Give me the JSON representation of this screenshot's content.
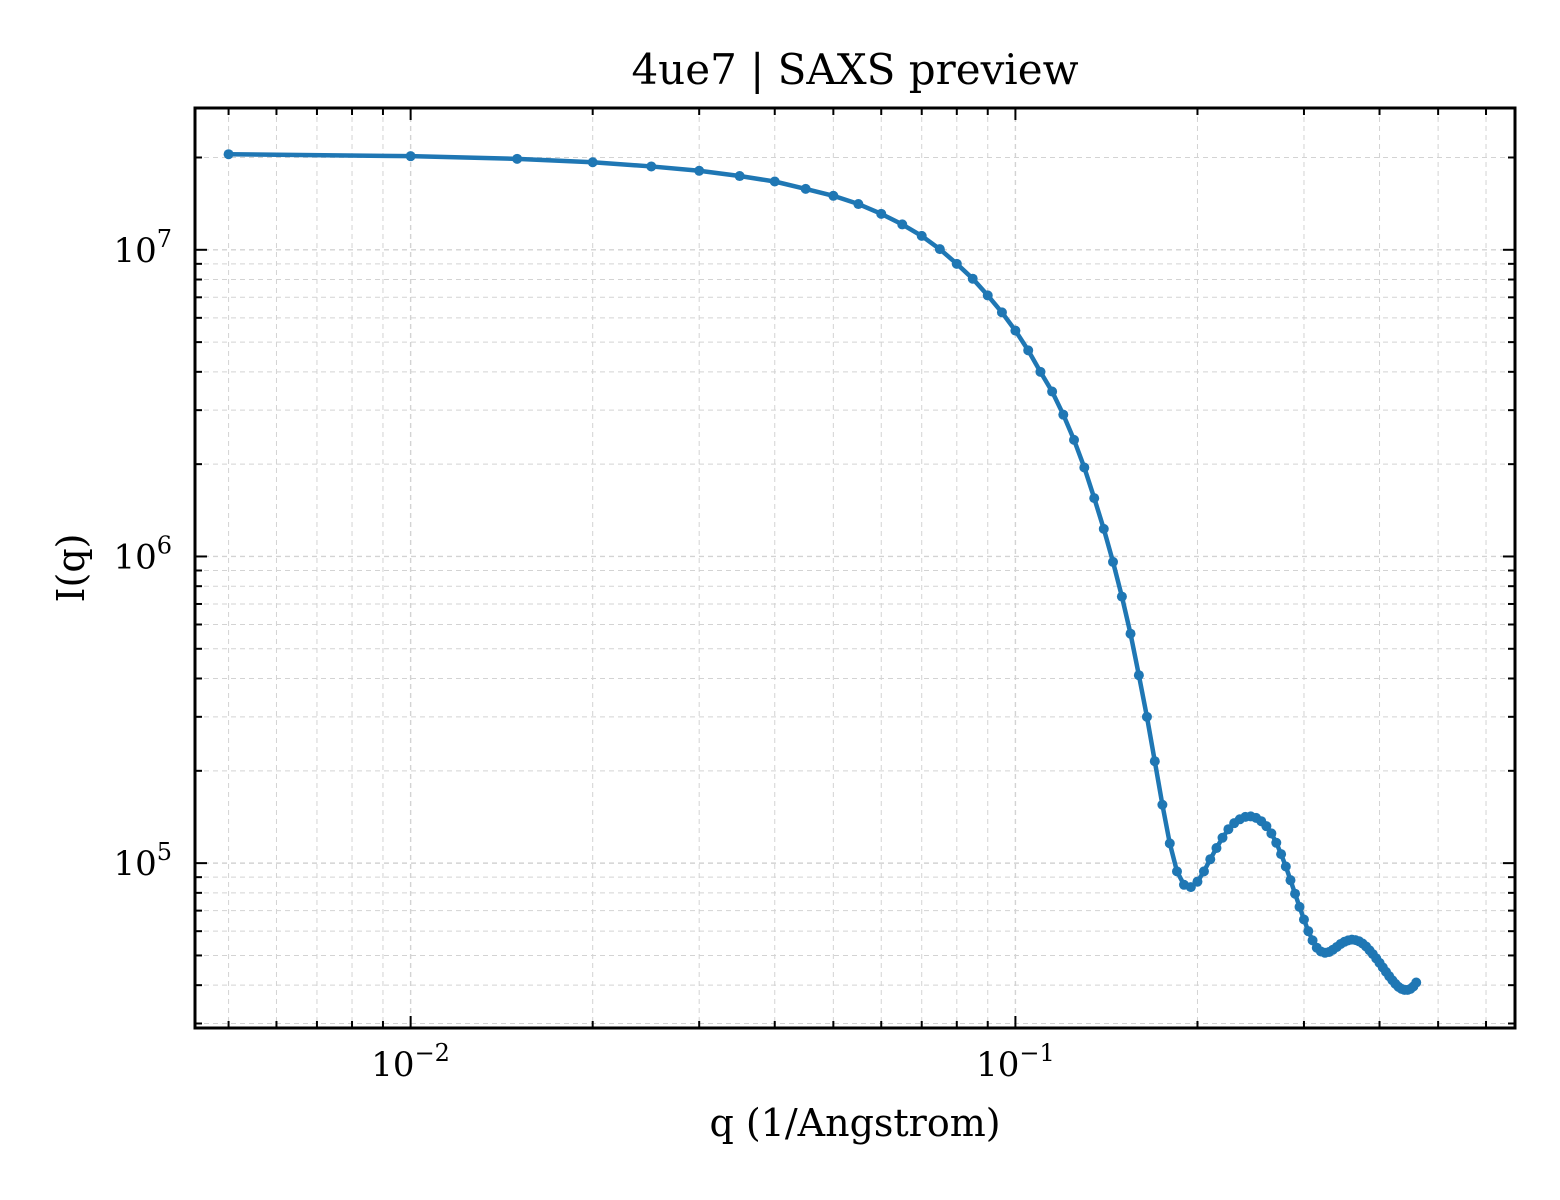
{
  "chart_data": {
    "type": "line",
    "title": "4ue7 | SAXS preview",
    "xlabel": "q (1/Angstrom)",
    "ylabel": "I(q)",
    "xscale": "log",
    "yscale": "log",
    "xlim": [
      0.0044,
      0.67
    ],
    "ylim": [
      29000,
      29000000
    ],
    "grid": true,
    "legend": "none",
    "colors": {
      "line": "#1f77b4",
      "grid": "#d3d3d3",
      "axis": "#000000"
    },
    "x_ticks": [
      {
        "value": 0.01,
        "base": "10",
        "exp": "−2"
      },
      {
        "value": 0.1,
        "base": "10",
        "exp": "−1"
      }
    ],
    "y_ticks": [
      {
        "value": 100000,
        "base": "10",
        "exp": "5"
      },
      {
        "value": 1000000,
        "base": "10",
        "exp": "6"
      },
      {
        "value": 10000000,
        "base": "10",
        "exp": "7"
      }
    ],
    "series": [
      {
        "points": [
          [
            0.005,
            20500000
          ],
          [
            0.01,
            20200000
          ],
          [
            0.015,
            19800000
          ],
          [
            0.02,
            19300000
          ],
          [
            0.025,
            18700000
          ],
          [
            0.03,
            18100000
          ],
          [
            0.035,
            17400000
          ],
          [
            0.04,
            16700000
          ],
          [
            0.045,
            15800000
          ],
          [
            0.05,
            15000000
          ],
          [
            0.055,
            14100000
          ],
          [
            0.06,
            13100000
          ],
          [
            0.065,
            12100000
          ],
          [
            0.07,
            11100000
          ],
          [
            0.075,
            10050000
          ],
          [
            0.08,
            9000000
          ],
          [
            0.085,
            8050000
          ],
          [
            0.09,
            7100000
          ],
          [
            0.095,
            6250000
          ],
          [
            0.1,
            5450000
          ],
          [
            0.105,
            4700000
          ],
          [
            0.11,
            4000000
          ],
          [
            0.115,
            3450000
          ],
          [
            0.12,
            2900000
          ],
          [
            0.125,
            2400000
          ],
          [
            0.13,
            1950000
          ],
          [
            0.135,
            1550000
          ],
          [
            0.14,
            1230000
          ],
          [
            0.145,
            960000
          ],
          [
            0.15,
            740000
          ],
          [
            0.155,
            560000
          ],
          [
            0.16,
            410000
          ],
          [
            0.165,
            300000
          ],
          [
            0.17,
            215000
          ],
          [
            0.175,
            155000
          ],
          [
            0.18,
            116000
          ],
          [
            0.185,
            94000
          ],
          [
            0.19,
            85000
          ],
          [
            0.195,
            83500
          ],
          [
            0.2,
            87000
          ],
          [
            0.205,
            94000
          ],
          [
            0.21,
            103000
          ],
          [
            0.215,
            112000
          ],
          [
            0.22,
            121000
          ],
          [
            0.225,
            129000
          ],
          [
            0.23,
            135000
          ],
          [
            0.235,
            139000
          ],
          [
            0.24,
            141500
          ],
          [
            0.245,
            142000
          ],
          [
            0.25,
            140500
          ],
          [
            0.255,
            137000
          ],
          [
            0.26,
            132000
          ],
          [
            0.265,
            125000
          ],
          [
            0.27,
            116500
          ],
          [
            0.275,
            107000
          ],
          [
            0.28,
            97500
          ],
          [
            0.285,
            88000
          ],
          [
            0.29,
            79500
          ],
          [
            0.295,
            72000
          ],
          [
            0.3,
            65500
          ],
          [
            0.305,
            60000
          ],
          [
            0.31,
            56000
          ],
          [
            0.315,
            53000
          ],
          [
            0.32,
            51500
          ],
          [
            0.325,
            51000
          ],
          [
            0.33,
            51300
          ],
          [
            0.335,
            52200
          ],
          [
            0.34,
            53300
          ],
          [
            0.345,
            54500
          ],
          [
            0.35,
            55400
          ],
          [
            0.355,
            56000
          ],
          [
            0.36,
            56300
          ],
          [
            0.365,
            56100
          ],
          [
            0.37,
            55600
          ],
          [
            0.375,
            54700
          ],
          [
            0.38,
            53500
          ],
          [
            0.385,
            52000
          ],
          [
            0.39,
            50500
          ],
          [
            0.395,
            48900
          ],
          [
            0.4,
            47300
          ],
          [
            0.405,
            45700
          ],
          [
            0.41,
            44200
          ],
          [
            0.415,
            42800
          ],
          [
            0.42,
            41500
          ],
          [
            0.425,
            40400
          ],
          [
            0.43,
            39500
          ],
          [
            0.435,
            38900
          ],
          [
            0.44,
            38600
          ],
          [
            0.445,
            38600
          ],
          [
            0.45,
            38900
          ],
          [
            0.455,
            39600
          ],
          [
            0.46,
            40800
          ]
        ]
      }
    ]
  }
}
